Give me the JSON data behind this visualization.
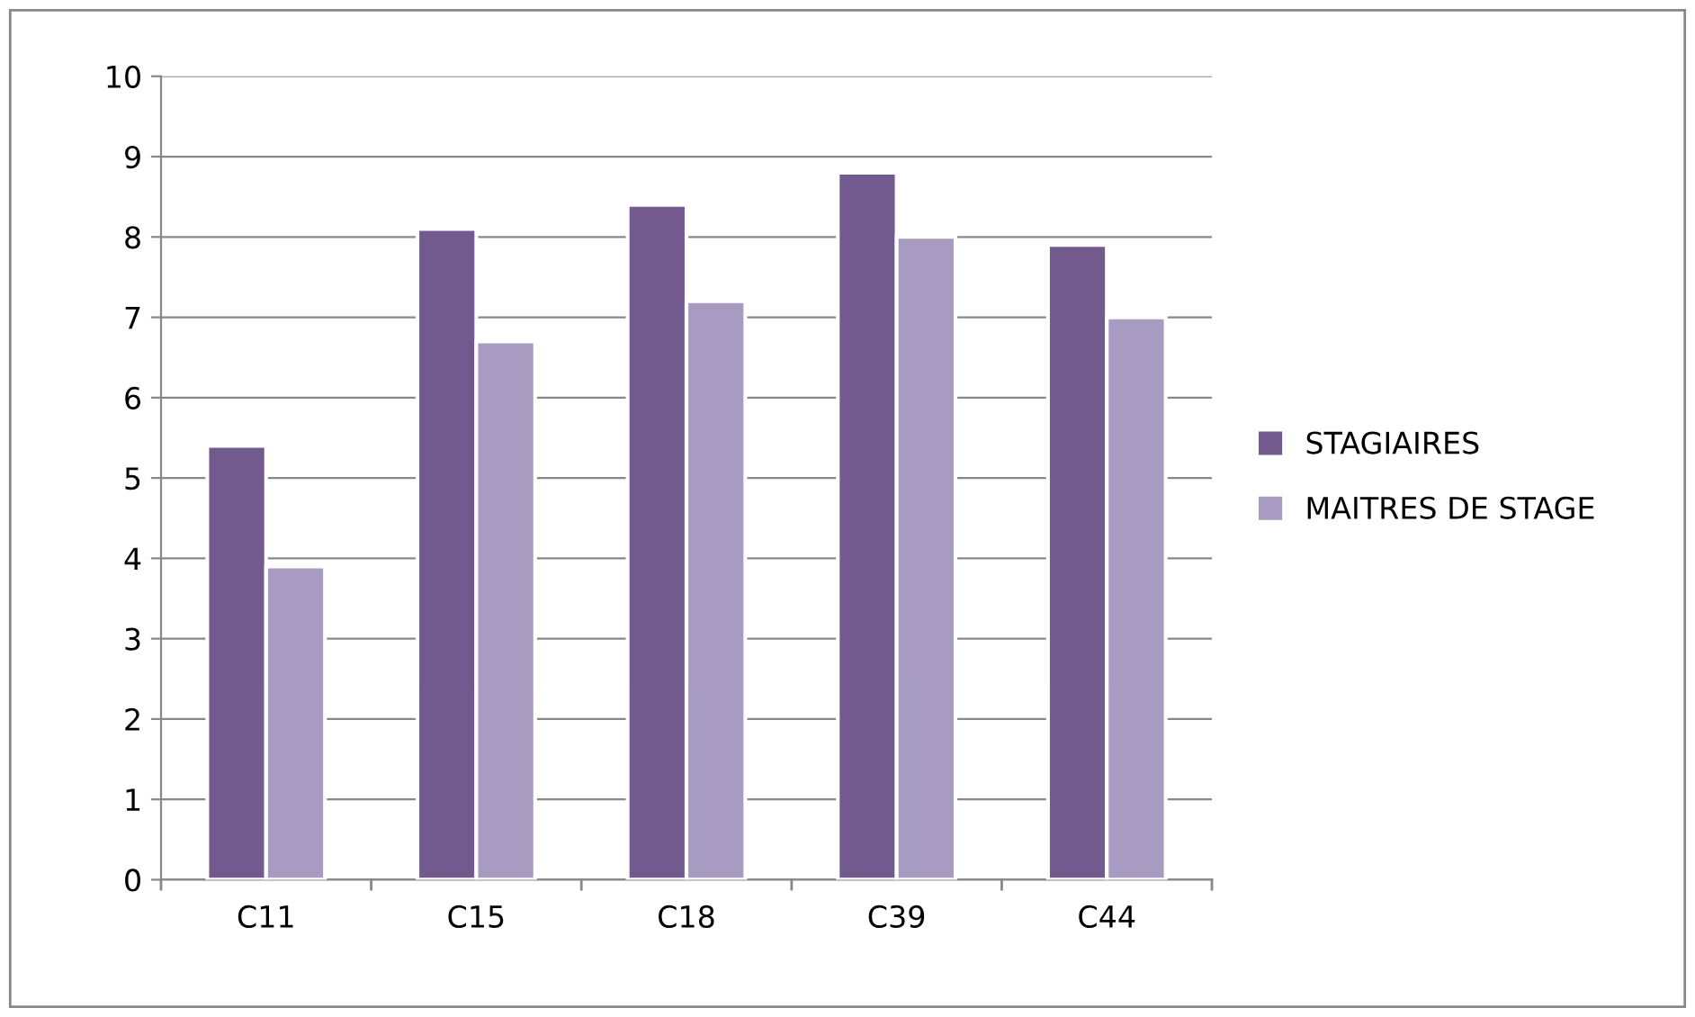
{
  "chart_data": {
    "type": "bar",
    "categories": [
      "C11",
      "C15",
      "C18",
      "C39",
      "C44"
    ],
    "series": [
      {
        "name": "STAGIAIRES",
        "color": "#725a8f",
        "values": [
          5.4,
          8.1,
          8.4,
          8.8,
          7.9
        ]
      },
      {
        "name": "MAITRES DE STAGE",
        "color": "#a89bc1",
        "values": [
          3.9,
          6.7,
          7.2,
          8.0,
          7.0
        ]
      }
    ],
    "ylim": [
      0,
      10
    ],
    "yticks": [
      0,
      1,
      2,
      3,
      4,
      5,
      6,
      7,
      8,
      9,
      10
    ],
    "grid": "y",
    "legend": "right"
  }
}
